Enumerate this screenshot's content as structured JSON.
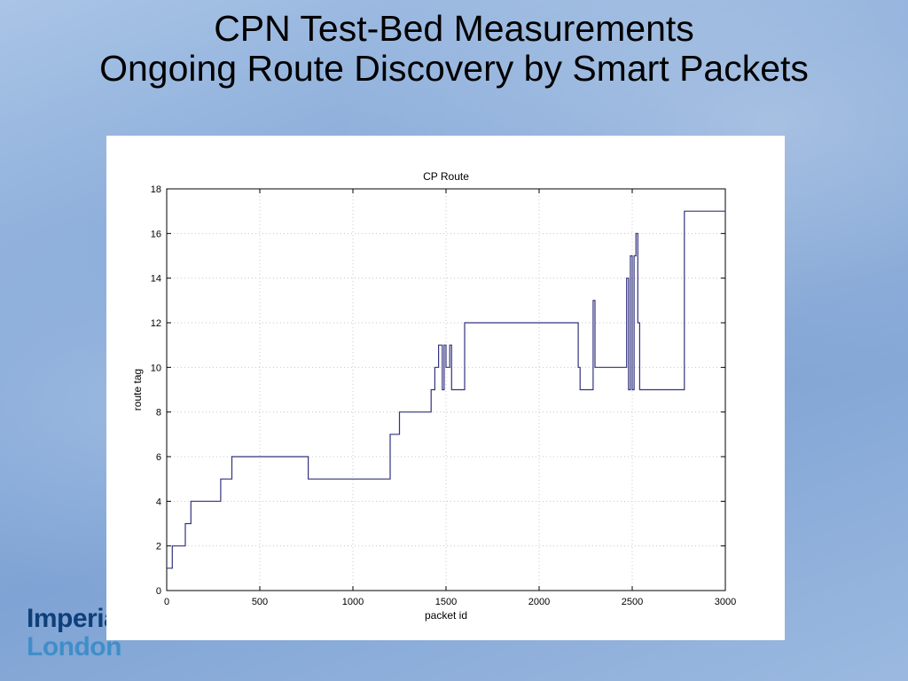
{
  "slide": {
    "title_line1": "CPN Test-Bed Measurements",
    "title_line2": "Ongoing Route Discovery by Smart Packets"
  },
  "logo": {
    "line1": "Imperia",
    "line2": "London"
  },
  "colors": {
    "series_line": "#33337f",
    "grid": "#c8c8c8"
  },
  "chart_data": {
    "type": "line",
    "title": "CP Route",
    "xlabel": "packet id",
    "ylabel": "route tag",
    "xlim": [
      0,
      3000
    ],
    "ylim": [
      0,
      18
    ],
    "xticks": [
      0,
      500,
      1000,
      1500,
      2000,
      2500,
      3000
    ],
    "yticks": [
      0,
      2,
      4,
      6,
      8,
      10,
      12,
      14,
      16,
      18
    ],
    "grid": true,
    "step": true,
    "series": [
      {
        "name": "",
        "x": [
          0,
          30,
          100,
          130,
          290,
          350,
          760,
          1200,
          1250,
          1420,
          1440,
          1460,
          1480,
          1490,
          1500,
          1520,
          1530,
          1600,
          2210,
          2220,
          2290,
          2300,
          2310,
          2470,
          2480,
          2490,
          2500,
          2510,
          2520,
          2530,
          2540,
          2550,
          2780,
          3000
        ],
        "y": [
          1,
          2,
          3,
          4,
          5,
          6,
          5,
          7,
          8,
          9,
          10,
          11,
          9,
          11,
          10,
          11,
          9,
          12,
          10,
          9,
          13,
          10,
          10,
          14,
          9,
          15,
          9,
          15,
          16,
          12,
          9,
          9,
          17,
          17
        ]
      }
    ]
  }
}
